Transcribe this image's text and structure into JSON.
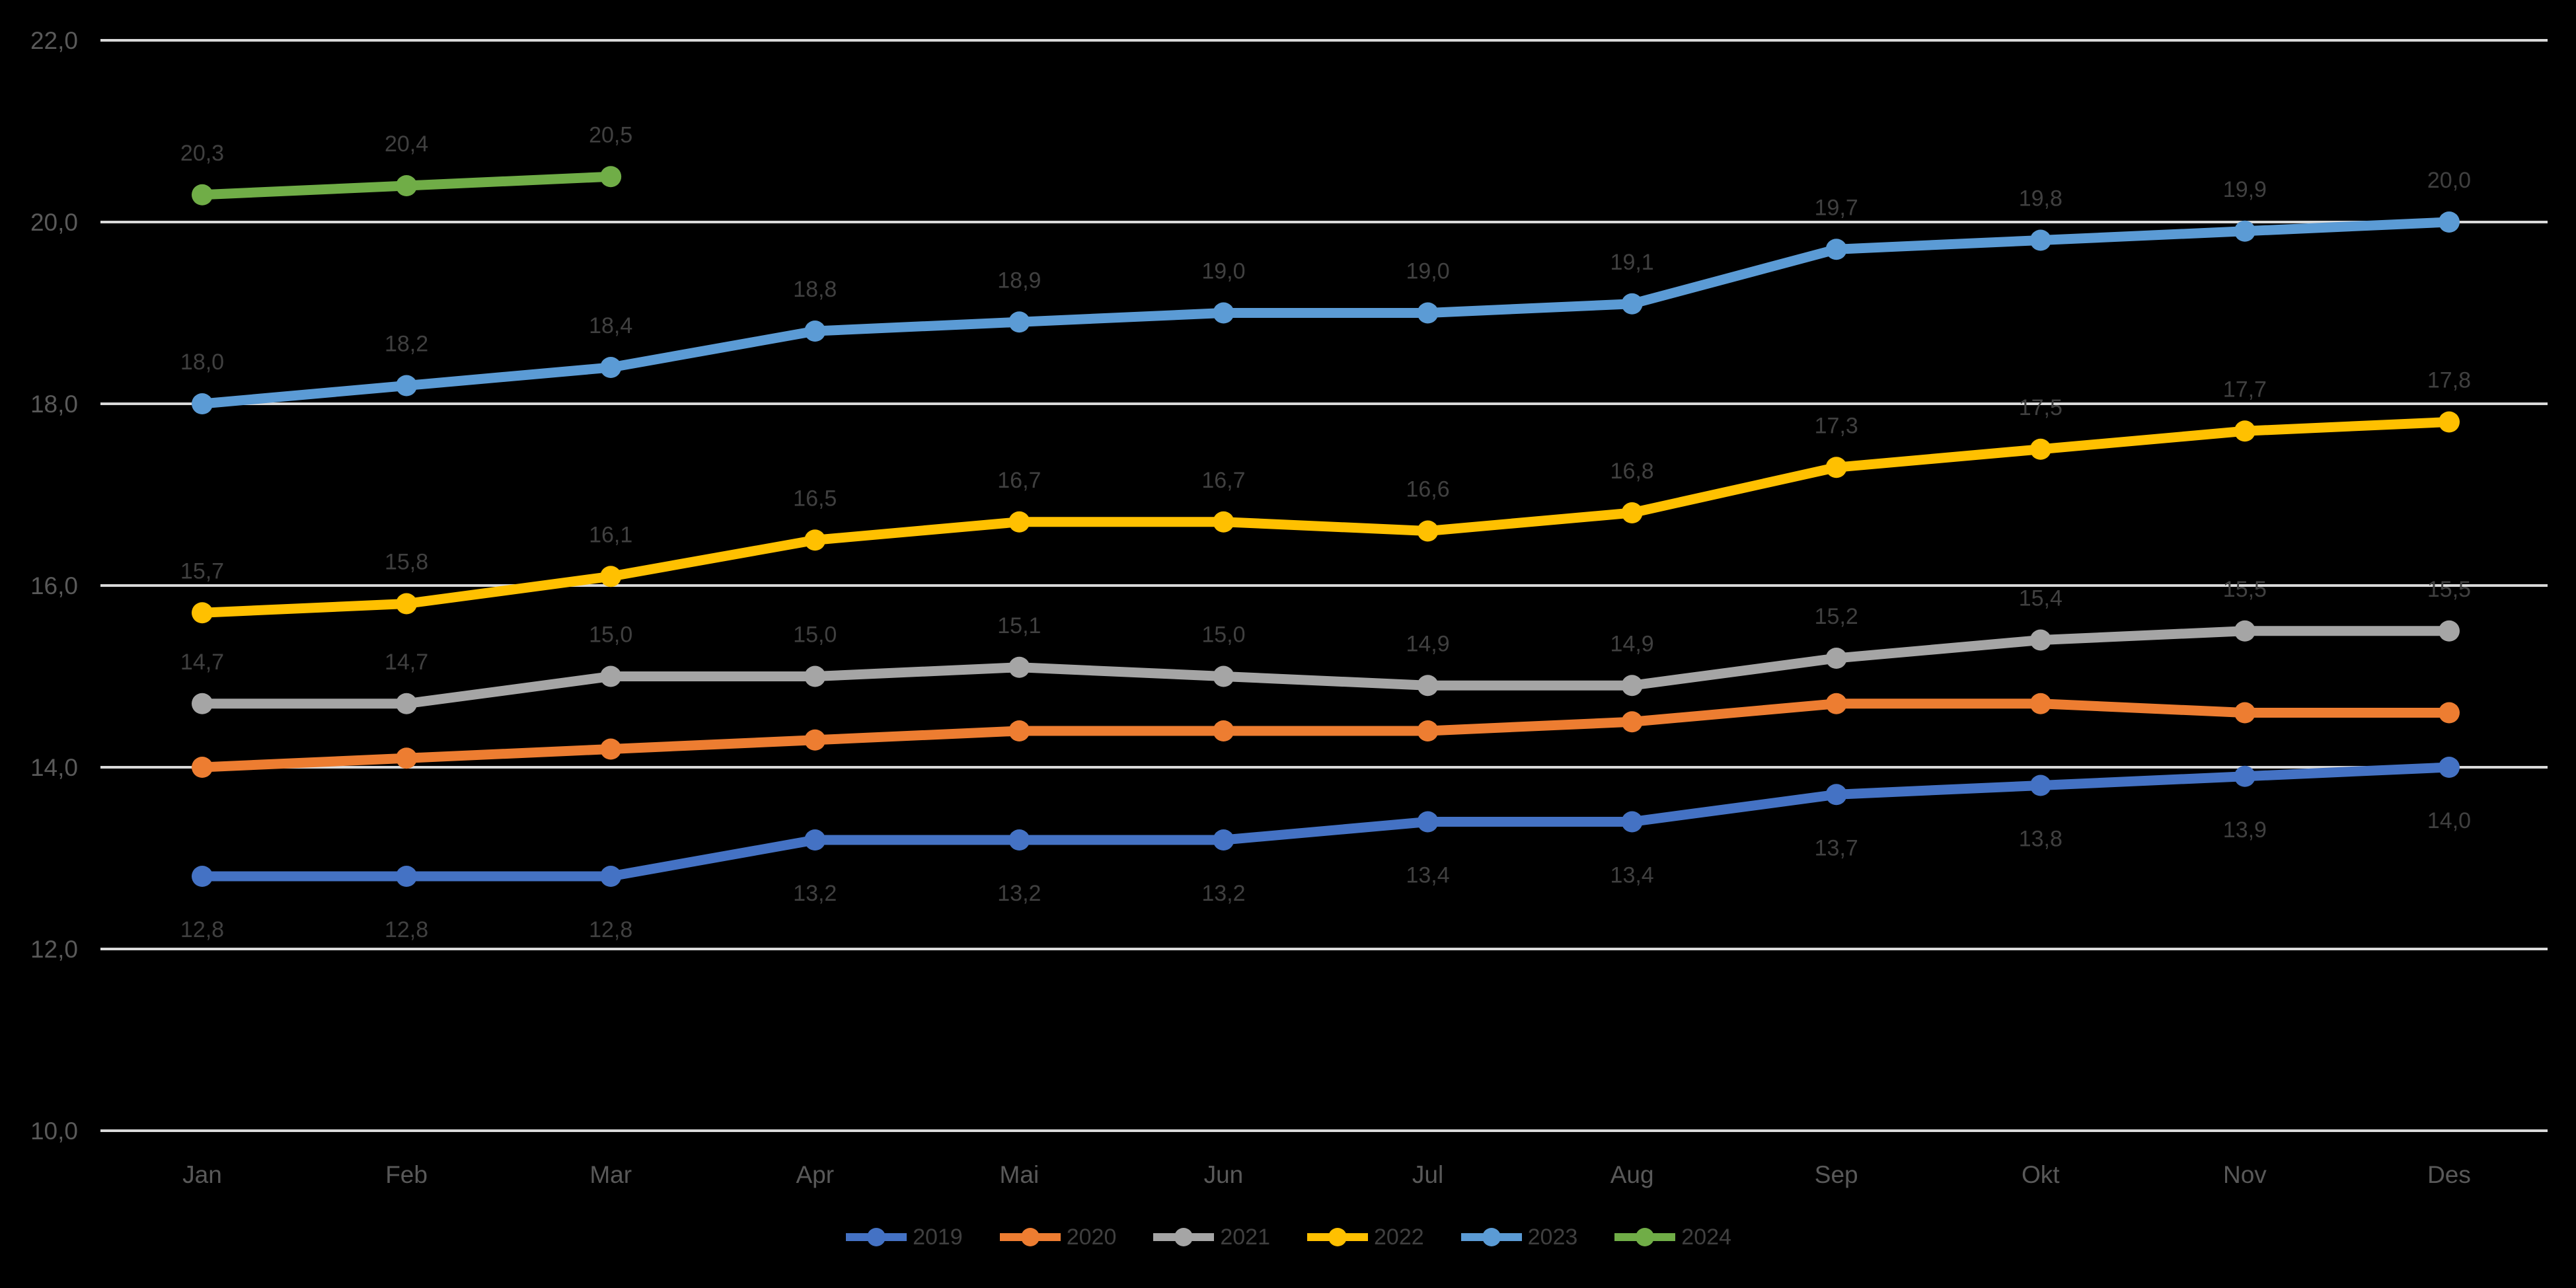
{
  "chart_data": {
    "type": "line",
    "title": "",
    "xlabel": "",
    "ylabel": "",
    "categories": [
      "Jan",
      "Feb",
      "Mar",
      "Apr",
      "Mai",
      "Jun",
      "Jul",
      "Aug",
      "Sep",
      "Okt",
      "Nov",
      "Des"
    ],
    "series": [
      {
        "name": "2019",
        "color": "#4472C4",
        "label_position": "below",
        "values": [
          12.8,
          12.8,
          12.8,
          13.2,
          13.2,
          13.2,
          13.4,
          13.4,
          13.7,
          13.8,
          13.9,
          14.0
        ]
      },
      {
        "name": "2020",
        "color": "#ED7D31",
        "label_position": "none",
        "values": [
          14.0,
          14.1,
          14.2,
          14.3,
          14.4,
          14.4,
          14.4,
          14.5,
          14.7,
          14.7,
          14.6,
          14.6
        ]
      },
      {
        "name": "2021",
        "color": "#A5A5A5",
        "label_position": "above",
        "values": [
          14.7,
          14.7,
          15.0,
          15.0,
          15.1,
          15.0,
          14.9,
          14.9,
          15.2,
          15.4,
          15.5,
          15.5
        ]
      },
      {
        "name": "2022",
        "color": "#FFC000",
        "label_position": "above",
        "values": [
          15.7,
          15.8,
          16.1,
          16.5,
          16.7,
          16.7,
          16.6,
          16.8,
          17.3,
          17.5,
          17.7,
          17.8
        ]
      },
      {
        "name": "2023",
        "color": "#5B9BD5",
        "label_position": "above",
        "values": [
          18.0,
          18.2,
          18.4,
          18.8,
          18.9,
          19.0,
          19.0,
          19.1,
          19.7,
          19.8,
          19.9,
          20.0
        ]
      },
      {
        "name": "2024",
        "color": "#70AD47",
        "label_position": "above",
        "values": [
          20.3,
          20.4,
          20.5
        ]
      }
    ],
    "ylim": [
      10,
      22
    ],
    "y_tick_step": 2,
    "y_tick_labels": [
      "10,0",
      "12,0",
      "14,0",
      "16,0",
      "18,0",
      "20,0",
      "22,0"
    ],
    "decimal_separator": ",",
    "grid": true,
    "legend_position": "bottom",
    "colors": {
      "background": "#000000",
      "gridline": "#D9D9D9",
      "axis_text": "#595959",
      "data_label": "#404040",
      "legend_text": "#404040"
    }
  }
}
